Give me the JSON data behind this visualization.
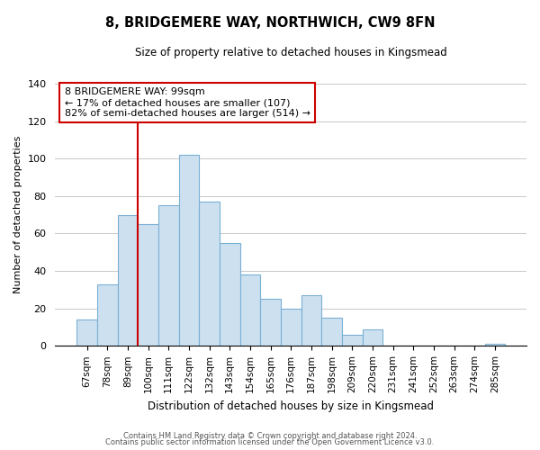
{
  "title": "8, BRIDGEMERE WAY, NORTHWICH, CW9 8FN",
  "subtitle": "Size of property relative to detached houses in Kingsmead",
  "xlabel": "Distribution of detached houses by size in Kingsmead",
  "ylabel": "Number of detached properties",
  "bar_labels": [
    "67sqm",
    "78sqm",
    "89sqm",
    "100sqm",
    "111sqm",
    "122sqm",
    "132sqm",
    "143sqm",
    "154sqm",
    "165sqm",
    "176sqm",
    "187sqm",
    "198sqm",
    "209sqm",
    "220sqm",
    "231sqm",
    "241sqm",
    "252sqm",
    "263sqm",
    "274sqm",
    "285sqm"
  ],
  "bar_heights": [
    14,
    33,
    70,
    65,
    75,
    102,
    77,
    55,
    38,
    25,
    20,
    27,
    15,
    6,
    9,
    0,
    0,
    0,
    0,
    0,
    1
  ],
  "bar_color": "#cce0f0",
  "bar_edge_color": "#7ab0d4",
  "vline_color": "#cc0000",
  "annotation_title": "8 BRIDGEMERE WAY: 99sqm",
  "annotation_line1": "← 17% of detached houses are smaller (107)",
  "annotation_line2": "82% of semi-detached houses are larger (514) →",
  "annotation_box_edge": "#cc0000",
  "ylim": [
    0,
    140
  ],
  "yticks": [
    0,
    20,
    40,
    60,
    80,
    100,
    120,
    140
  ],
  "footer1": "Contains HM Land Registry data © Crown copyright and database right 2024.",
  "footer2": "Contains public sector information licensed under the Open Government Licence v3.0."
}
